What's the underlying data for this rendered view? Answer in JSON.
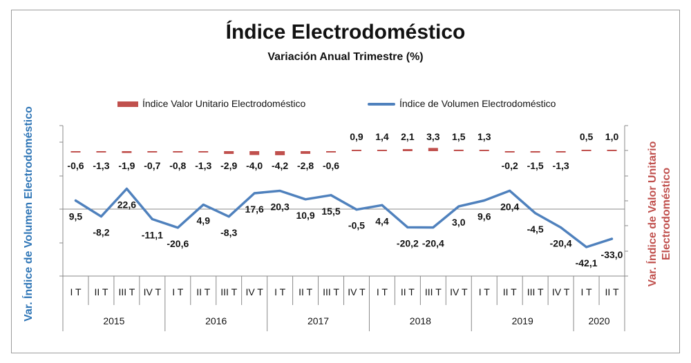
{
  "chart_data": {
    "type": "line",
    "title": "Índice Electrodoméstico",
    "subtitle": "Variación Anual Trimestre  (%)",
    "ylabel_left": "Var. Índice de Volumen Electrodoméstico",
    "ylabel_right": "Var. Índice de Valor Unitario Electrodoméstico",
    "legend_position": "top",
    "quarter_labels": [
      "I T",
      "II T",
      "III T",
      "IV T",
      "I T",
      "II T",
      "III T",
      "IV T",
      "I T",
      "II T",
      "III T",
      "IV T",
      "I T",
      "II T",
      "III T",
      "IV T",
      "I T",
      "II T",
      "III T",
      "IV T",
      "I T",
      "II T"
    ],
    "years": [
      {
        "label": "2015",
        "quarters": 4
      },
      {
        "label": "2016",
        "quarters": 4
      },
      {
        "label": "2017",
        "quarters": 4
      },
      {
        "label": "2018",
        "quarters": 4
      },
      {
        "label": "2019",
        "quarters": 4
      },
      {
        "label": "2020",
        "quarters": 2
      }
    ],
    "series": [
      {
        "name": "Índice Valor Unitario Electrodoméstico",
        "style": "dash",
        "color": "#c0504d",
        "axis": "right",
        "values": [
          -0.6,
          -1.3,
          -1.9,
          -0.7,
          -0.8,
          -1.3,
          -2.9,
          -4.0,
          -4.2,
          -2.8,
          -0.6,
          0.9,
          1.4,
          2.1,
          3.3,
          1.5,
          1.3,
          -0.2,
          -1.5,
          -1.3,
          0.5,
          1.0
        ],
        "labels": [
          "-0,6",
          "-1,3",
          "-1,9",
          "-0,7",
          "-0,8",
          "-1,3",
          "-2,9",
          "-4,0",
          "-4,2",
          "-2,8",
          "-0,6",
          "0,9",
          "1,4",
          "2,1",
          "3,3",
          "1,5",
          "1,3",
          "-0,2",
          "-1,5",
          "-1,3",
          "0,5",
          "1,0"
        ]
      },
      {
        "name": "Índice de Volumen Electrodoméstico",
        "style": "line",
        "color": "#4f81bd",
        "axis": "left",
        "values": [
          9.5,
          -8.2,
          22.6,
          -11.1,
          -20.6,
          4.9,
          -8.3,
          17.6,
          20.3,
          10.9,
          15.5,
          -0.5,
          4.4,
          -20.2,
          -20.4,
          3.0,
          9.6,
          20.4,
          -4.5,
          -20.4,
          -42.1,
          -33.0
        ],
        "labels": [
          "9,5",
          "-8,2",
          "22,6",
          "-11,1",
          "-20,6",
          "4,9",
          "-8,3",
          "17,6",
          "20,3",
          "10,9",
          "15,5",
          "-0,5",
          "4,4",
          "-20,2",
          "-20,4",
          "3,0",
          "9,6",
          "20,4",
          "-4,5",
          "-20,4",
          "-42,1",
          "-33,0"
        ]
      }
    ],
    "ylim_left": [
      -100,
      100
    ],
    "ylim_right": [
      -50,
      50
    ]
  }
}
